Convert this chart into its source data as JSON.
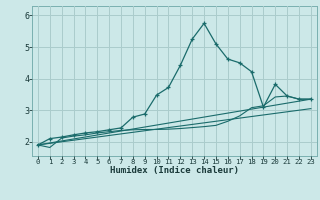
{
  "xlabel": "Humidex (Indice chaleur)",
  "bg_color": "#cce8e8",
  "grid_color": "#aacccc",
  "line_color": "#1a6b6b",
  "xlim": [
    -0.5,
    23.5
  ],
  "ylim": [
    1.55,
    6.3
  ],
  "xticks": [
    0,
    1,
    2,
    3,
    4,
    5,
    6,
    7,
    8,
    9,
    10,
    11,
    12,
    13,
    14,
    15,
    16,
    17,
    18,
    19,
    20,
    21,
    22,
    23
  ],
  "yticks": [
    2,
    3,
    4,
    5,
    6
  ],
  "curve_main_x": [
    0,
    1,
    2,
    3,
    4,
    5,
    6,
    7,
    8,
    9,
    10,
    11,
    12,
    13,
    14,
    15,
    16,
    17,
    18,
    19,
    20,
    21,
    22,
    23
  ],
  "curve_main_y": [
    1.9,
    2.1,
    2.15,
    2.22,
    2.28,
    2.32,
    2.38,
    2.44,
    2.78,
    2.88,
    3.48,
    3.72,
    4.42,
    5.25,
    5.75,
    5.1,
    4.62,
    4.5,
    4.22,
    3.1,
    3.82,
    3.45,
    3.35,
    3.35
  ],
  "curve2_x": [
    0,
    1,
    2,
    3,
    4,
    5,
    6,
    7,
    8,
    9,
    10,
    11,
    12,
    13,
    14,
    15,
    16,
    17,
    18,
    19,
    20,
    21,
    22,
    23
  ],
  "curve2_y": [
    1.9,
    1.82,
    2.12,
    2.18,
    2.22,
    2.28,
    2.32,
    2.36,
    2.38,
    2.39,
    2.39,
    2.4,
    2.42,
    2.45,
    2.48,
    2.52,
    2.65,
    2.82,
    3.08,
    3.14,
    3.42,
    3.45,
    3.35,
    3.35
  ],
  "line3_x": [
    0,
    23
  ],
  "line3_y": [
    1.9,
    3.35
  ],
  "line4_x": [
    0,
    23
  ],
  "line4_y": [
    1.9,
    3.05
  ]
}
